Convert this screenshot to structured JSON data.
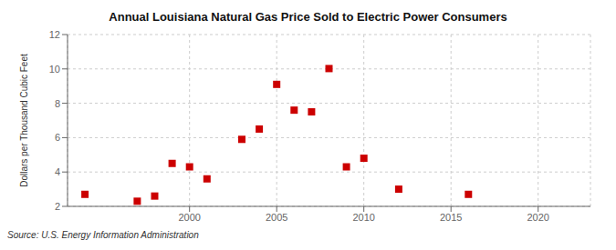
{
  "chart_data": {
    "type": "scatter",
    "title": "Annual Louisiana Natural Gas Price Sold to Electric Power Consumers",
    "ylabel": "Dollars per Thousand Cubic Feet",
    "source": "Source: U.S. Energy Information Administration",
    "x": [
      1994,
      1997,
      1998,
      1999,
      2000,
      2001,
      2003,
      2004,
      2005,
      2006,
      2007,
      2008,
      2009,
      2010,
      2012,
      2016
    ],
    "values": [
      2.7,
      2.3,
      2.6,
      4.5,
      4.3,
      3.6,
      5.9,
      6.5,
      9.1,
      7.6,
      7.5,
      10.02,
      4.3,
      4.8,
      3.0,
      2.7
    ],
    "color": "#cc0000",
    "marker": "square",
    "xlim": [
      1993,
      2023
    ],
    "ylim": [
      2,
      12
    ],
    "xticks": [
      2000,
      2005,
      2010,
      2015,
      2020
    ],
    "yticks": [
      2,
      4,
      6,
      8,
      10,
      12
    ],
    "grid": true
  }
}
